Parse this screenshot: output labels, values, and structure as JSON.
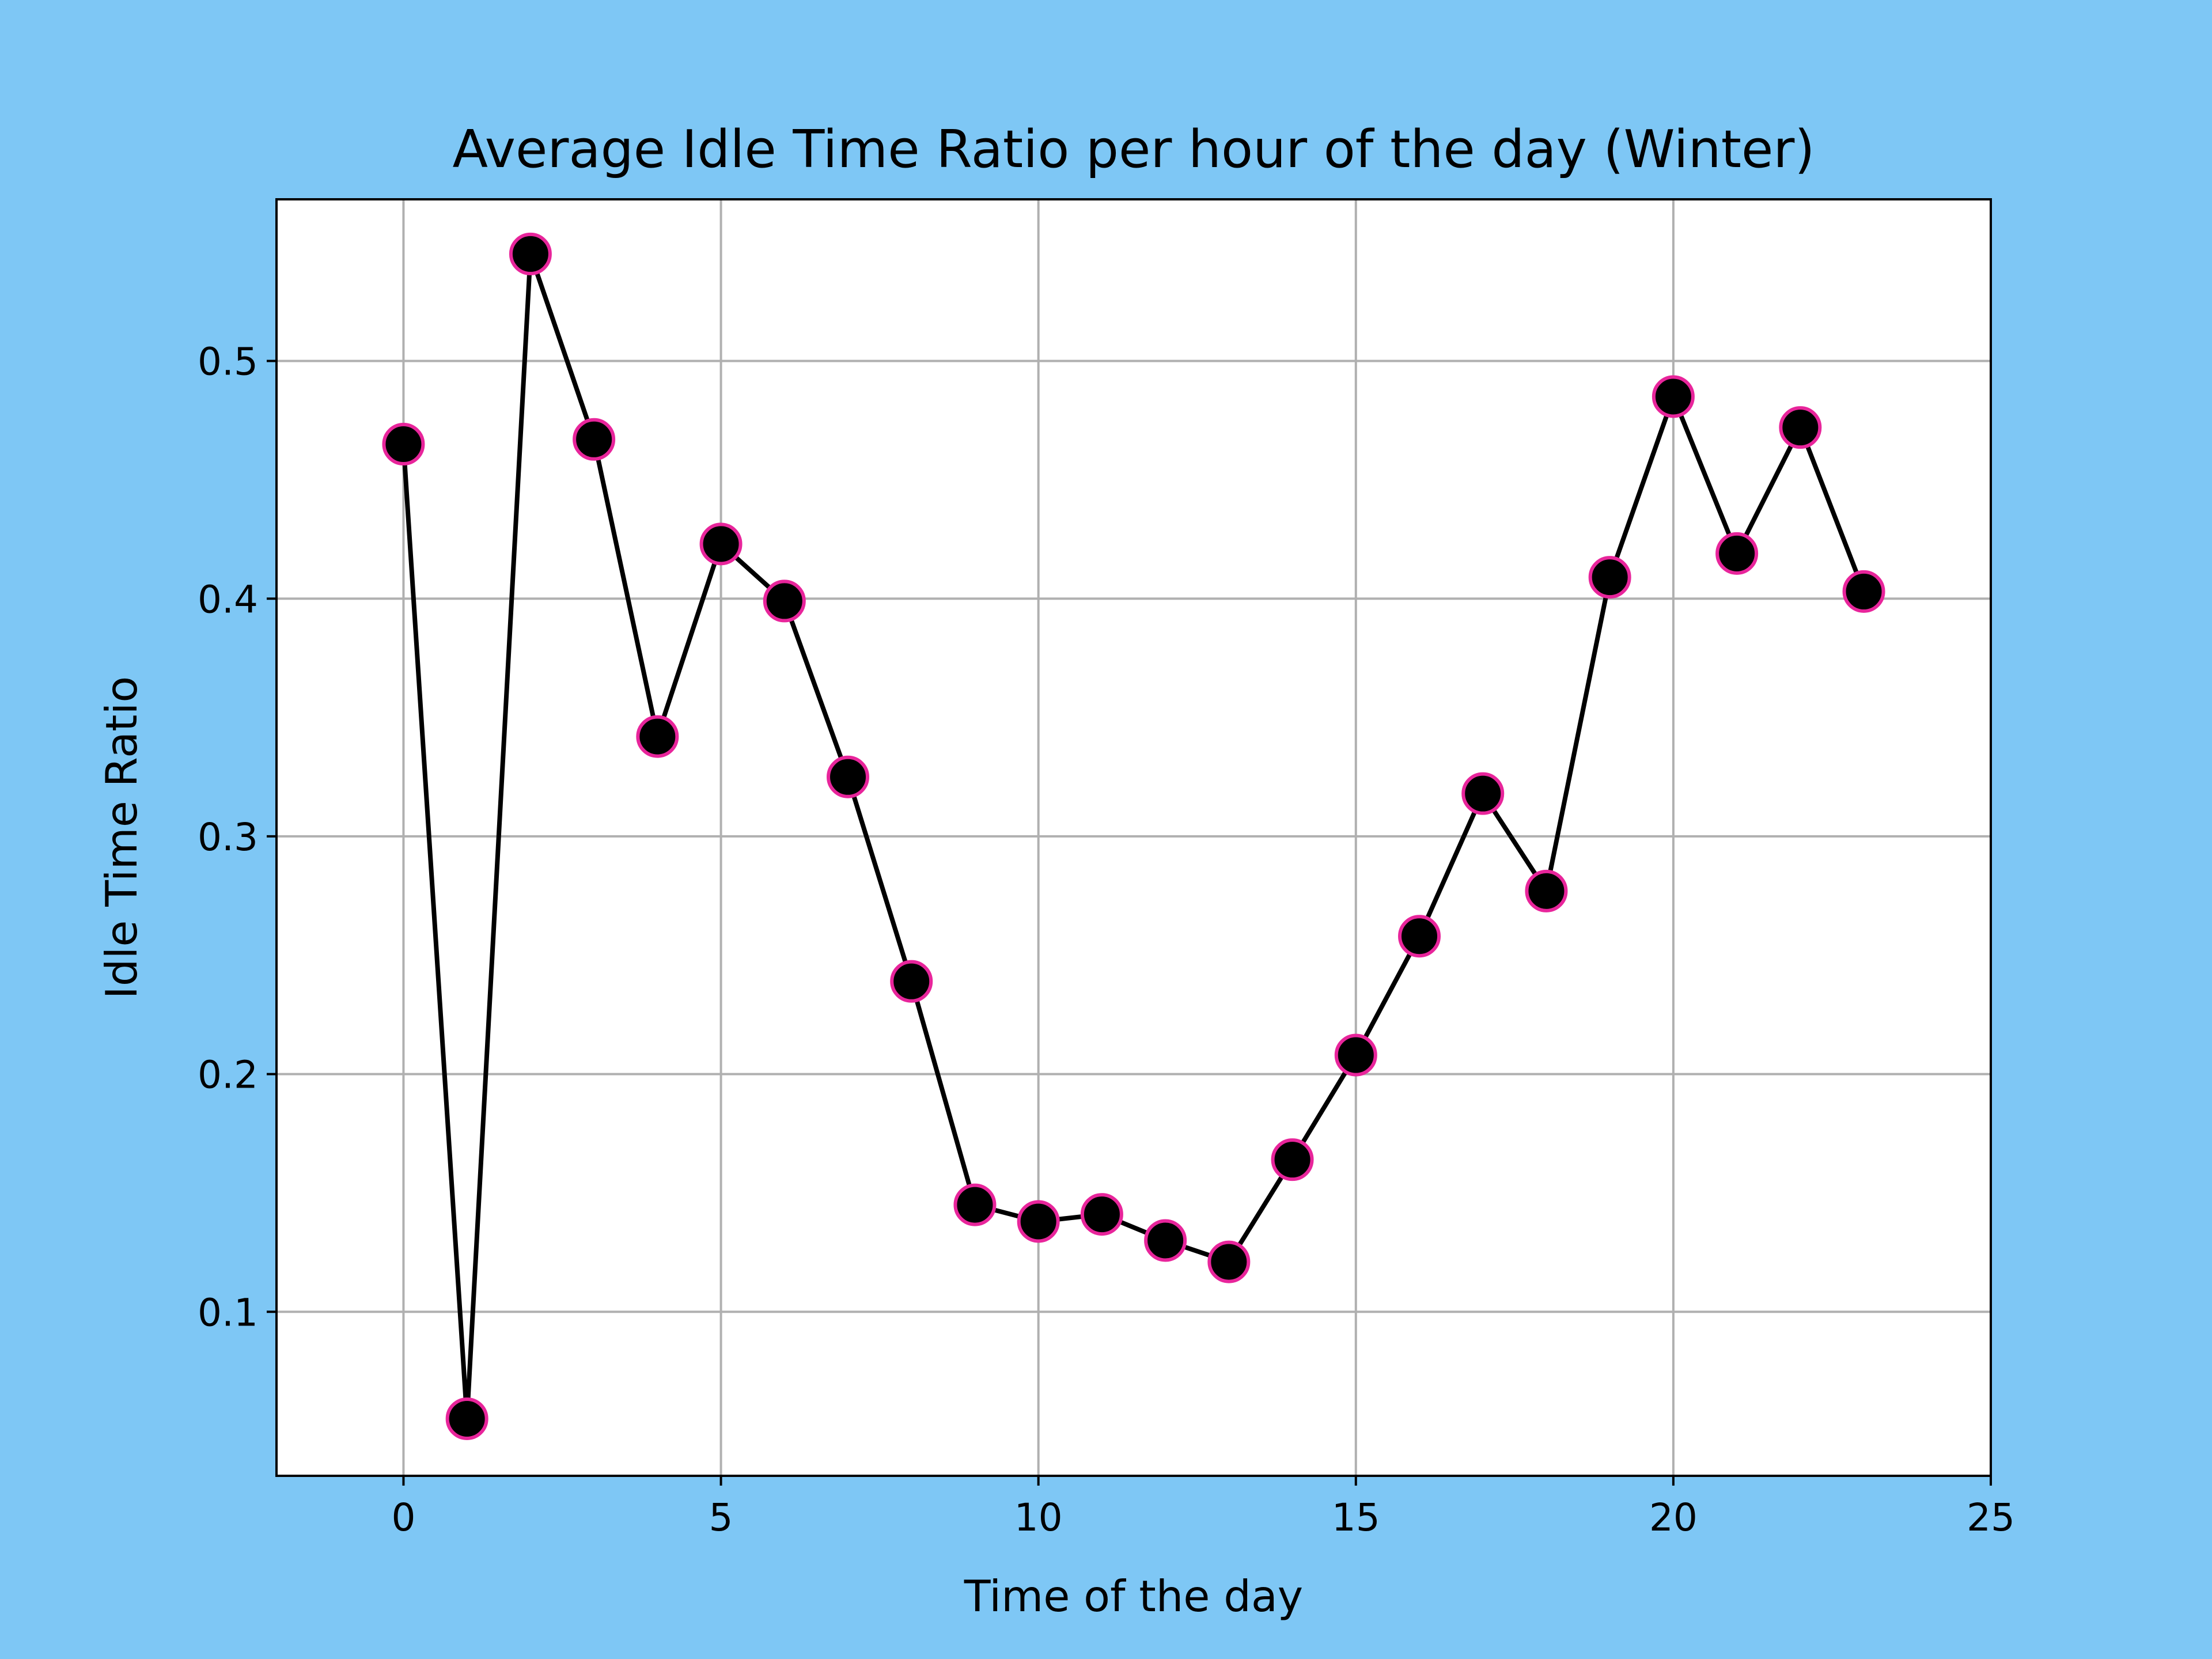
{
  "colors": {
    "figure_background": "#7ec7f5",
    "plot_background": "#ffffff",
    "line": "#000000",
    "marker_fill": "#000000",
    "marker_edge": "#e8259b",
    "grid": "#b0b0b0"
  },
  "chart_data": {
    "type": "line",
    "title": "Average Idle Time Ratio per hour of the day (Winter)",
    "xlabel": "Time of the day",
    "ylabel": "Idle Time Ratio",
    "xlim": [
      -2,
      25
    ],
    "ylim": [
      0.031,
      0.568
    ],
    "xticks": [
      0,
      5,
      10,
      15,
      20,
      25
    ],
    "yticks": [
      0.1,
      0.2,
      0.3,
      0.4,
      0.5
    ],
    "xtick_labels": [
      "0",
      "5",
      "10",
      "15",
      "20",
      "25"
    ],
    "ytick_labels": [
      "0.1",
      "0.2",
      "0.3",
      "0.4",
      "0.5"
    ],
    "grid": true,
    "legend": "none",
    "series": [
      {
        "marker": "circle",
        "x": [
          0,
          1,
          2,
          3,
          4,
          5,
          6,
          7,
          8,
          9,
          10,
          11,
          12,
          13,
          14,
          15,
          16,
          17,
          18,
          19,
          20,
          21,
          22,
          23
        ],
        "values": [
          0.465,
          0.055,
          0.545,
          0.467,
          0.342,
          0.423,
          0.399,
          0.325,
          0.239,
          0.145,
          0.138,
          0.141,
          0.13,
          0.121,
          0.164,
          0.208,
          0.258,
          0.318,
          0.277,
          0.409,
          0.485,
          0.419,
          0.472,
          0.403
        ]
      }
    ]
  }
}
